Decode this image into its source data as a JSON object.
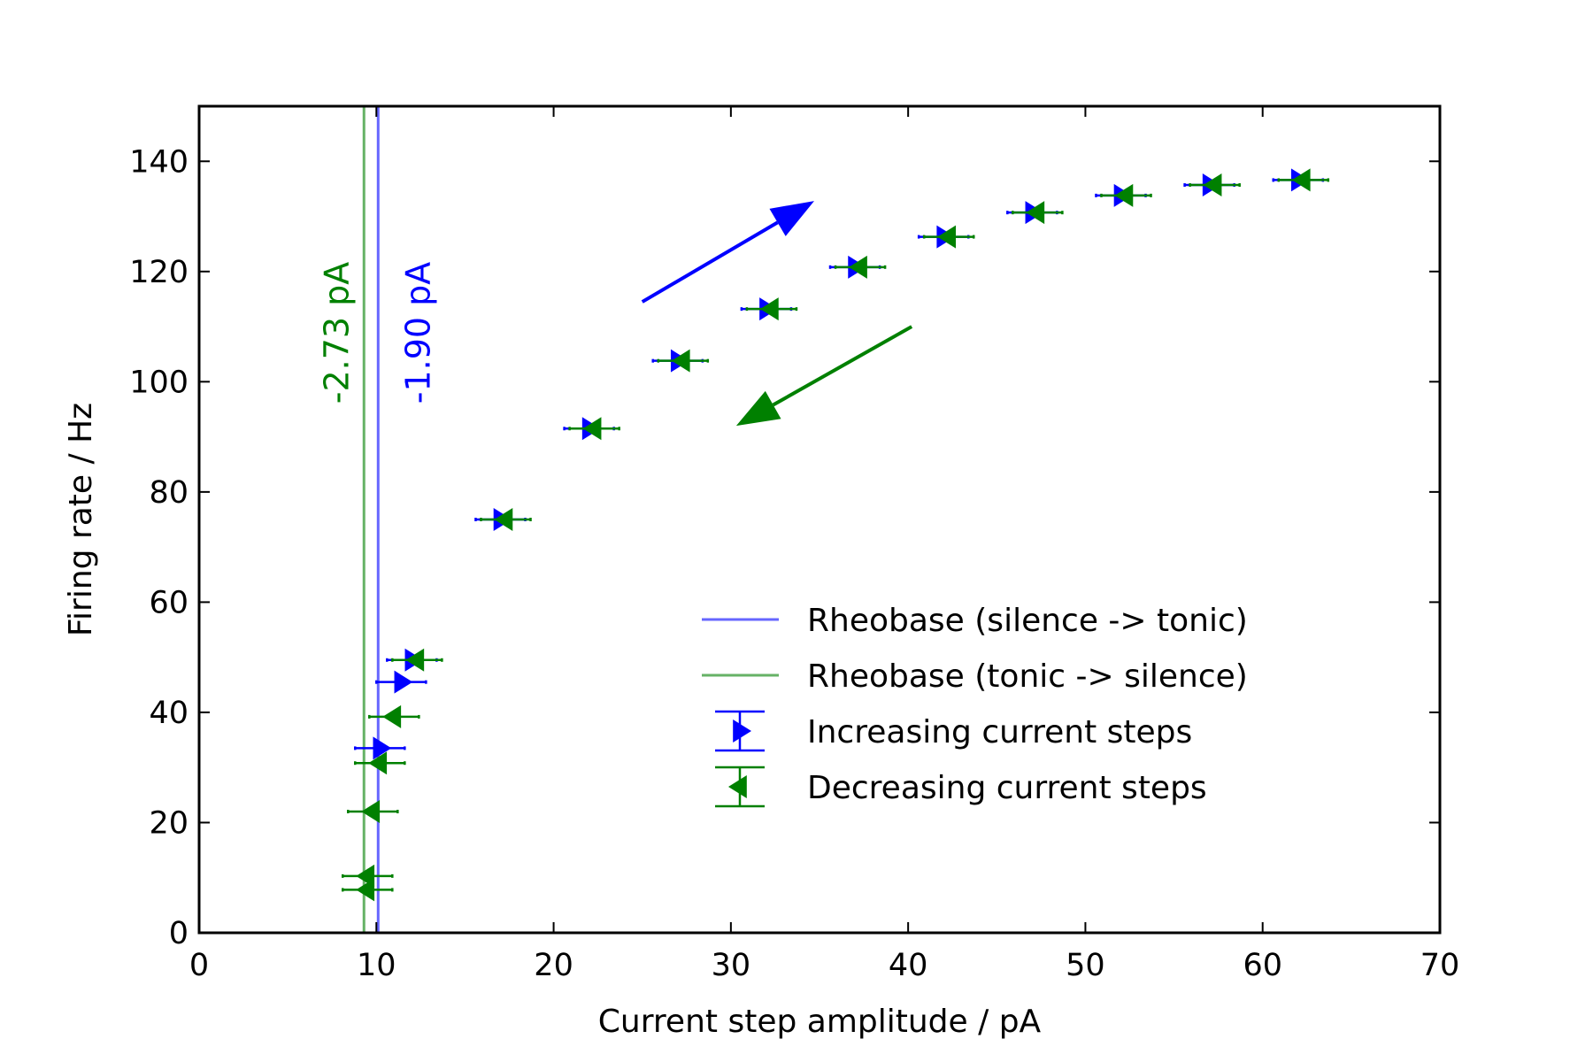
{
  "chart_data": {
    "type": "scatter",
    "title": "",
    "xlabel": "Current step amplitude / pA",
    "ylabel": "Firing rate / Hz",
    "xlim": [
      0,
      70
    ],
    "ylim": [
      0,
      150
    ],
    "xticks": [
      0,
      10,
      20,
      30,
      40,
      50,
      60,
      70
    ],
    "yticks": [
      0,
      20,
      40,
      60,
      80,
      100,
      120,
      140
    ],
    "grid": false,
    "legend_position": "lower-right",
    "colors": {
      "increasing": "#0000ff",
      "decreasing": "#008000",
      "rheo_up": "#6666ff",
      "rheo_down": "#66b266"
    },
    "vlines": [
      {
        "name": "Rheobase (silence -> tonic)",
        "x": 10.1,
        "color": "#6666ff",
        "label": "-1.90 pA"
      },
      {
        "name": "Rheobase (tonic -> silence)",
        "x": 9.3,
        "color": "#66b266",
        "label": "-2.73 pA"
      }
    ],
    "series": [
      {
        "name": "Increasing current steps",
        "marker": "triangle-right",
        "color": "#0000ff",
        "points": [
          {
            "x": 10.2,
            "y": 33.5,
            "xerr": 1.4
          },
          {
            "x": 11.4,
            "y": 45.5,
            "xerr": 1.4
          },
          {
            "x": 12.0,
            "y": 49.5,
            "xerr": 1.4
          },
          {
            "x": 17.0,
            "y": 75.0,
            "xerr": 1.4
          },
          {
            "x": 22.0,
            "y": 91.5,
            "xerr": 1.4
          },
          {
            "x": 27.0,
            "y": 103.8,
            "xerr": 1.4
          },
          {
            "x": 32.0,
            "y": 113.2,
            "xerr": 1.4
          },
          {
            "x": 37.0,
            "y": 120.8,
            "xerr": 1.4
          },
          {
            "x": 42.0,
            "y": 126.3,
            "xerr": 1.4
          },
          {
            "x": 47.0,
            "y": 130.7,
            "xerr": 1.4
          },
          {
            "x": 52.0,
            "y": 133.8,
            "xerr": 1.4
          },
          {
            "x": 57.0,
            "y": 135.7,
            "xerr": 1.4
          },
          {
            "x": 62.0,
            "y": 136.6,
            "xerr": 1.4
          }
        ]
      },
      {
        "name": "Decreasing current steps",
        "marker": "triangle-left",
        "color": "#008000",
        "points": [
          {
            "x": 9.5,
            "y": 7.8,
            "xerr": 1.4
          },
          {
            "x": 9.5,
            "y": 10.3,
            "xerr": 1.4
          },
          {
            "x": 9.8,
            "y": 22.0,
            "xerr": 1.4
          },
          {
            "x": 10.2,
            "y": 30.8,
            "xerr": 1.4
          },
          {
            "x": 11.0,
            "y": 39.2,
            "xerr": 1.4
          },
          {
            "x": 12.3,
            "y": 49.5,
            "xerr": 1.4
          },
          {
            "x": 17.3,
            "y": 75.0,
            "xerr": 1.4
          },
          {
            "x": 22.3,
            "y": 91.5,
            "xerr": 1.4
          },
          {
            "x": 27.3,
            "y": 103.8,
            "xerr": 1.4
          },
          {
            "x": 32.3,
            "y": 113.2,
            "xerr": 1.4
          },
          {
            "x": 37.3,
            "y": 120.8,
            "xerr": 1.4
          },
          {
            "x": 42.3,
            "y": 126.3,
            "xerr": 1.4
          },
          {
            "x": 47.3,
            "y": 130.7,
            "xerr": 1.4
          },
          {
            "x": 52.3,
            "y": 133.8,
            "xerr": 1.4
          },
          {
            "x": 57.3,
            "y": 135.7,
            "xerr": 1.4
          },
          {
            "x": 62.3,
            "y": 136.6,
            "xerr": 1.4
          }
        ]
      }
    ],
    "arrows": [
      {
        "name": "increasing-direction",
        "color": "#0000ff",
        "from": [
          25.0,
          114.5
        ],
        "to": [
          34.7,
          132.8
        ]
      },
      {
        "name": "decreasing-direction",
        "color": "#008000",
        "from": [
          40.2,
          110.0
        ],
        "to": [
          30.3,
          92.0
        ]
      }
    ]
  }
}
